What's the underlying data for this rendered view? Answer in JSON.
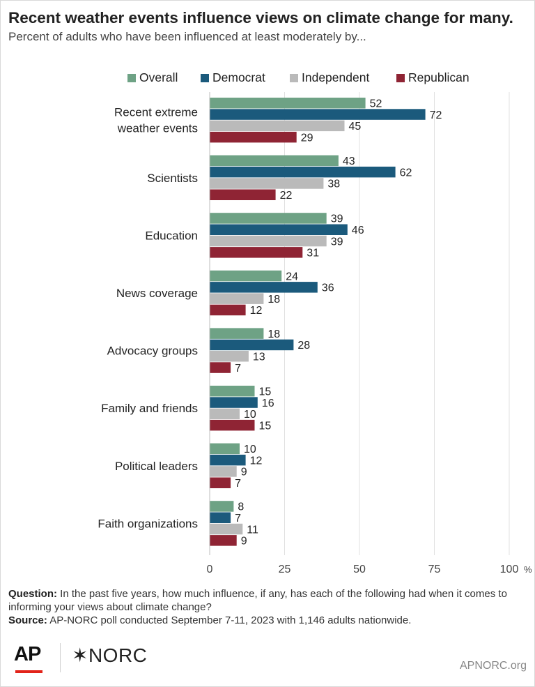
{
  "title": "Recent weather events influence views on climate change for many.",
  "subtitle": "Percent of adults who have been influenced at least moderately by...",
  "legend": [
    {
      "name": "Overall",
      "color": "#6ea285"
    },
    {
      "name": "Democrat",
      "color": "#1b5a7c"
    },
    {
      "name": "Independent",
      "color": "#bababa"
    },
    {
      "name": "Republican",
      "color": "#8f2434"
    }
  ],
  "chart_data": {
    "type": "bar",
    "orientation": "horizontal",
    "categories": [
      [
        "Recent extreme",
        "weather events"
      ],
      [
        "Scientists"
      ],
      [
        "Education"
      ],
      [
        "News coverage"
      ],
      [
        "Advocacy groups"
      ],
      [
        "Family and friends"
      ],
      [
        "Political leaders"
      ],
      [
        "Faith organizations"
      ]
    ],
    "series": [
      {
        "name": "Overall",
        "color": "#6ea285",
        "values": [
          52,
          43,
          39,
          24,
          18,
          15,
          10,
          8
        ]
      },
      {
        "name": "Democrat",
        "color": "#1b5a7c",
        "values": [
          72,
          62,
          46,
          36,
          28,
          16,
          12,
          7
        ]
      },
      {
        "name": "Independent",
        "color": "#bababa",
        "values": [
          45,
          38,
          39,
          18,
          13,
          10,
          9,
          11
        ]
      },
      {
        "name": "Republican",
        "color": "#8f2434",
        "values": [
          29,
          22,
          31,
          12,
          7,
          15,
          7,
          9
        ]
      }
    ],
    "xlim": [
      0,
      100
    ],
    "xticks": [
      "0",
      "25",
      "50",
      "75",
      "100"
    ],
    "x_unit": "%",
    "grid": true,
    "legend_position": "top"
  },
  "footnote": {
    "question_label": "Question:",
    "question_text": " In the past five years, how much influence, if any, has each of the following had when it comes to informing your views about climate change?",
    "source_label": "Source:",
    "source_text": " AP-NORC poll conducted September 7-11, 2023 with 1,146 adults nationwide."
  },
  "branding": {
    "ap_logo": "AP",
    "norc_logo": "✶NORC",
    "site": "APNORC.org"
  }
}
